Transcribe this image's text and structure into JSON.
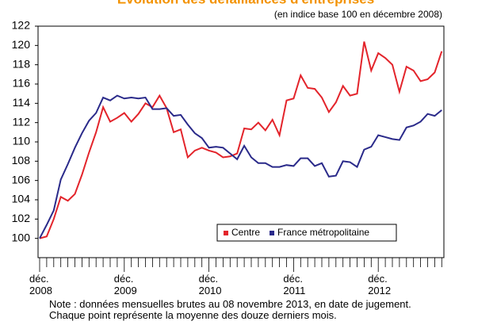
{
  "chart_data": {
    "type": "line",
    "title": "Évolution des défaillances d'entreprises",
    "subtitle": "(en indice base 100 en décembre 2008)",
    "categories": [
      "déc.\n2008",
      null,
      null,
      null,
      null,
      null,
      null,
      null,
      null,
      null,
      null,
      null,
      "déc.\n2009",
      null,
      null,
      null,
      null,
      null,
      null,
      null,
      null,
      null,
      null,
      null,
      "déc.\n2010",
      null,
      null,
      null,
      null,
      null,
      null,
      null,
      null,
      null,
      null,
      null,
      "déc.\n2011",
      null,
      null,
      null,
      null,
      null,
      null,
      null,
      null,
      null,
      null,
      null,
      "déc.\n2012",
      null,
      null,
      null,
      null,
      null,
      null,
      null,
      null,
      null
    ],
    "series": [
      {
        "name": "Centre",
        "color": "#e3242b",
        "values": [
          100,
          100.2,
          102,
          104.3,
          103.9,
          104.6,
          106.6,
          108.9,
          111,
          113.6,
          112.1,
          112.5,
          113,
          112.1,
          112.9,
          114,
          113.6,
          114.8,
          113.5,
          111,
          111.3,
          108.4,
          109.1,
          109.4,
          109.1,
          108.9,
          108.4,
          108.5,
          108.8,
          111.4,
          111.3,
          112,
          111.2,
          112.3,
          110.7,
          114.3,
          114.5,
          116.9,
          115.6,
          115.5,
          114.6,
          113.1,
          114.1,
          115.8,
          114.8,
          115,
          120.4,
          117.4,
          119.2,
          118.7,
          118,
          115.2,
          117.8,
          117.4,
          116.3,
          116.5,
          117.2,
          119.4
        ]
      },
      {
        "name": "France métropolitaine",
        "color": "#2a2a8a",
        "values": [
          100,
          101.4,
          102.9,
          106.1,
          107.7,
          109.4,
          110.9,
          112.2,
          113,
          114.6,
          114.3,
          114.8,
          114.5,
          114.6,
          114.5,
          114.6,
          113.4,
          113.4,
          113.5,
          112.7,
          112.8,
          111.8,
          110.9,
          110.4,
          109.4,
          109.5,
          109.4,
          108.8,
          108.2,
          109.6,
          108.4,
          107.8,
          107.8,
          107.4,
          107.4,
          107.6,
          107.5,
          108.3,
          108.3,
          107.5,
          107.8,
          106.4,
          106.5,
          108,
          107.9,
          107.4,
          109.2,
          109.5,
          110.7,
          110.5,
          110.3,
          110.2,
          111.5,
          111.7,
          112.1,
          112.9,
          112.7,
          113.3
        ]
      }
    ],
    "ylim": [
      98,
      122
    ],
    "yticks": [
      100,
      102,
      104,
      106,
      108,
      110,
      112,
      114,
      116,
      118,
      120,
      122
    ],
    "legend": "lower right",
    "notes": [
      "Note : données mensuelles brutes au 08 novembre  2013, en date de jugement.",
      "Chaque point représente la moyenne des douze derniers mois."
    ]
  }
}
